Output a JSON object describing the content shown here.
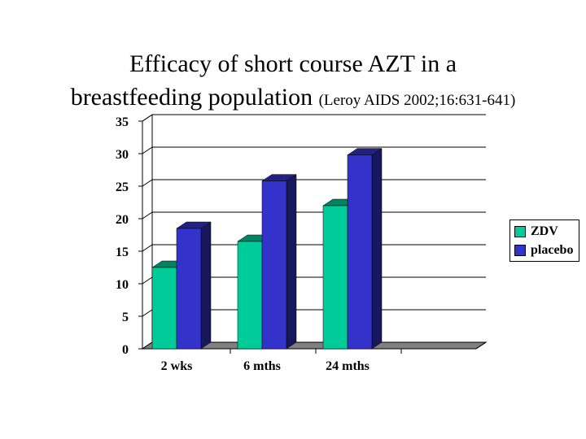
{
  "title": {
    "line1": "Efficacy of short course AZT in a",
    "line2": "breastfeeding population",
    "citation": "(Leroy AIDS 2002;16:631-641)"
  },
  "chart_data": {
    "type": "bar",
    "title": "Efficacy of short course AZT in a breastfeeding population",
    "categories": [
      "2 wks",
      "6 mths",
      "24 mths"
    ],
    "series": [
      {
        "name": "ZDV",
        "values": [
          12.5,
          16.5,
          22
        ],
        "color": "#00cc99"
      },
      {
        "name": "placebo",
        "values": [
          18.5,
          25.8,
          29.8
        ],
        "color": "#3333cc"
      }
    ],
    "ylim": [
      0,
      35
    ],
    "yticks": [
      "0",
      "5",
      "10",
      "15",
      "20",
      "25",
      "30",
      "35"
    ],
    "grid": true,
    "legend": "right",
    "xlabel": "",
    "ylabel": ""
  },
  "legend": {
    "items": [
      {
        "label": "ZDV",
        "color": "#00cc99"
      },
      {
        "label": "placebo",
        "color": "#3333cc"
      }
    ]
  }
}
